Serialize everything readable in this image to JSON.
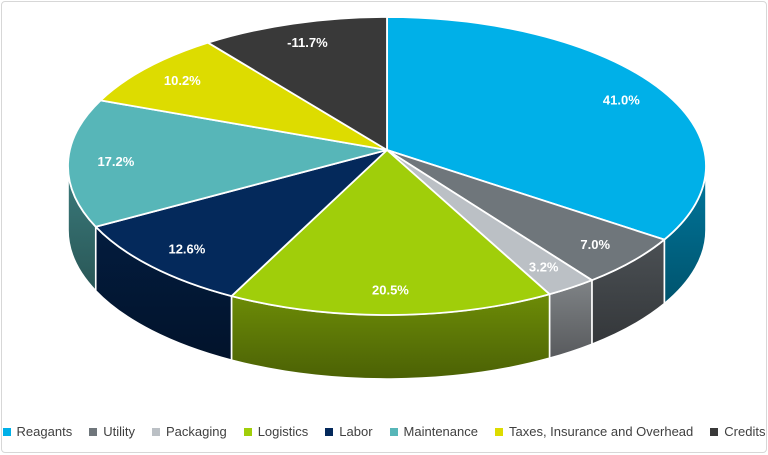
{
  "chart_data": {
    "type": "pie",
    "style": "3d",
    "title": "",
    "data_labels": "percentage",
    "label_color": "#ffffff",
    "legend_position": "bottom",
    "legend_text_color": "#404040",
    "frame_border_color": "#d7d7d7",
    "slices": [
      {
        "label": "Reagants",
        "value": 41.0,
        "display": "41.0%",
        "color": "#00B0E8"
      },
      {
        "label": "Utility",
        "value": 7.0,
        "display": "7.0%",
        "color": "#6F767B"
      },
      {
        "label": "Packaging",
        "value": 3.2,
        "display": "3.2%",
        "color": "#BBC0C5"
      },
      {
        "label": "Logistics",
        "value": 20.5,
        "display": "20.5%",
        "color": "#A0CE0A"
      },
      {
        "label": "Labor",
        "value": 12.6,
        "display": "12.6%",
        "color": "#04295B"
      },
      {
        "label": "Maintenance",
        "value": 17.2,
        "display": "17.2%",
        "color": "#57B6B8"
      },
      {
        "label": "Taxes, Insurance and Overhead",
        "value": 10.2,
        "display": "10.2%",
        "color": "#DDDC00"
      },
      {
        "label": "Credits",
        "value": -11.7,
        "display": "-11.7%",
        "color": "#393939"
      }
    ]
  }
}
